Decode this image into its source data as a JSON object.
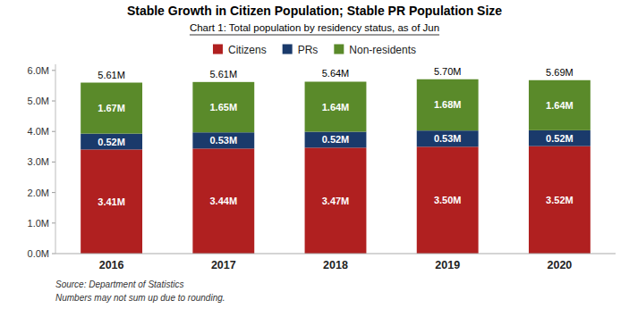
{
  "chart_data": {
    "type": "bar",
    "stacked": true,
    "data_labels": true,
    "grid": false,
    "legend": "top",
    "title": "Stable Growth in Citizen Population; Stable PR Population Size",
    "subtitle": "Chart 1: Total population by residency status, as of Jun",
    "categories": [
      "2016",
      "2017",
      "2018",
      "2019",
      "2020"
    ],
    "series": [
      {
        "name": "Citizens",
        "color": "#b02020",
        "values": [
          3.41,
          3.44,
          3.47,
          3.5,
          3.52
        ],
        "value_labels": [
          "3.41M",
          "3.44M",
          "3.47M",
          "3.50M",
          "3.52M"
        ]
      },
      {
        "name": "PRs",
        "color": "#1a3a6b",
        "values": [
          0.52,
          0.53,
          0.52,
          0.53,
          0.52
        ],
        "value_labels": [
          "0.52M",
          "0.53M",
          "0.52M",
          "0.53M",
          "0.52M"
        ]
      },
      {
        "name": "Non-residents",
        "color": "#5a8a2a",
        "values": [
          1.67,
          1.65,
          1.64,
          1.68,
          1.64
        ],
        "value_labels": [
          "1.67M",
          "1.65M",
          "1.64M",
          "1.68M",
          "1.64M"
        ]
      }
    ],
    "total_labels": [
      "5.61M",
      "5.61M",
      "5.64M",
      "5.70M",
      "5.69M"
    ],
    "ylim": [
      0,
      6.2
    ],
    "yticks": [
      {
        "value": 0.0,
        "label": "0.0M"
      },
      {
        "value": 1.0,
        "label": "1.0M"
      },
      {
        "value": 2.0,
        "label": "2.0M"
      },
      {
        "value": 3.0,
        "label": "3.0M"
      },
      {
        "value": 4.0,
        "label": "4.0M"
      },
      {
        "value": 5.0,
        "label": "5.0M"
      },
      {
        "value": 6.0,
        "label": "6.0M"
      }
    ],
    "annotations": [
      "Source: Department of Statistics",
      "Numbers may not sum up due to rounding."
    ]
  }
}
